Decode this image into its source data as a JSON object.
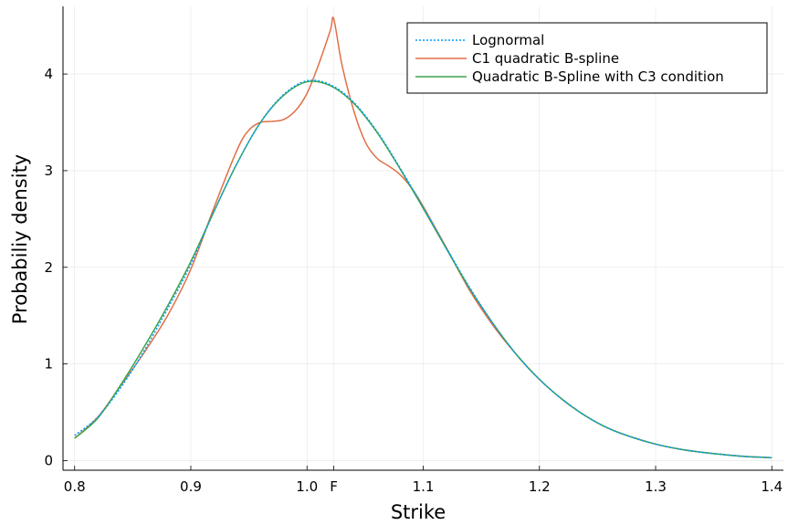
{
  "chart_data": {
    "type": "line",
    "title": "",
    "xlabel": "Strike",
    "ylabel": "Probabiliy density",
    "xlim": [
      0.79,
      1.41
    ],
    "ylim": [
      -0.1,
      4.7
    ],
    "grid": true,
    "legend_position": "top-right",
    "x_ticks": [
      {
        "value": 0.8,
        "label": "0.8"
      },
      {
        "value": 0.9,
        "label": "0.9"
      },
      {
        "value": 1.0,
        "label": "1.0"
      },
      {
        "value": 1.023,
        "label": "F"
      },
      {
        "value": 1.1,
        "label": "1.1"
      },
      {
        "value": 1.2,
        "label": "1.2"
      },
      {
        "value": 1.3,
        "label": "1.3"
      },
      {
        "value": 1.4,
        "label": "1.4"
      }
    ],
    "y_ticks": [
      {
        "value": 0,
        "label": "0"
      },
      {
        "value": 1,
        "label": "1"
      },
      {
        "value": 2,
        "label": "2"
      },
      {
        "value": 3,
        "label": "3"
      },
      {
        "value": 4,
        "label": "4"
      }
    ],
    "series": [
      {
        "name": "Lognormal",
        "color": "#009AFA",
        "dash": "dotted",
        "x": [
          0.8,
          0.82,
          0.84,
          0.86,
          0.88,
          0.9,
          0.92,
          0.94,
          0.96,
          0.98,
          1.0,
          1.02,
          1.04,
          1.06,
          1.08,
          1.1,
          1.12,
          1.14,
          1.16,
          1.18,
          1.2,
          1.22,
          1.24,
          1.26,
          1.28,
          1.3,
          1.32,
          1.34,
          1.36,
          1.38,
          1.4
        ],
        "y": [
          0.26,
          0.45,
          0.76,
          1.14,
          1.57,
          2.03,
          2.58,
          3.08,
          3.5,
          3.79,
          3.93,
          3.89,
          3.71,
          3.41,
          3.03,
          2.62,
          2.2,
          1.79,
          1.42,
          1.1,
          0.84,
          0.63,
          0.46,
          0.33,
          0.24,
          0.17,
          0.12,
          0.085,
          0.06,
          0.04,
          0.03
        ]
      },
      {
        "name": "C1 quadratic B-spline",
        "color": "#E26F46",
        "dash": "solid",
        "x": [
          0.8,
          0.82,
          0.84,
          0.86,
          0.88,
          0.9,
          0.92,
          0.94,
          0.95,
          0.96,
          0.97,
          0.98,
          0.99,
          1.0,
          1.01,
          1.02,
          1.023,
          1.03,
          1.04,
          1.05,
          1.06,
          1.07,
          1.08,
          1.09,
          1.1,
          1.12,
          1.14,
          1.16,
          1.18,
          1.2,
          1.22,
          1.24,
          1.26,
          1.28,
          1.3,
          1.32,
          1.34,
          1.36,
          1.38,
          1.4
        ],
        "y": [
          0.23,
          0.45,
          0.78,
          1.12,
          1.5,
          1.98,
          2.62,
          3.22,
          3.42,
          3.5,
          3.51,
          3.53,
          3.62,
          3.8,
          4.1,
          4.45,
          4.57,
          4.1,
          3.63,
          3.3,
          3.13,
          3.05,
          2.96,
          2.82,
          2.63,
          2.2,
          1.76,
          1.4,
          1.1,
          0.84,
          0.63,
          0.46,
          0.33,
          0.24,
          0.17,
          0.12,
          0.085,
          0.06,
          0.04,
          0.03
        ]
      },
      {
        "name": "Quadratic B-Spline with C3 condition",
        "color": "#3EA44E",
        "dash": "solid",
        "x": [
          0.8,
          0.82,
          0.84,
          0.86,
          0.88,
          0.9,
          0.92,
          0.94,
          0.96,
          0.98,
          1.0,
          1.02,
          1.04,
          1.06,
          1.08,
          1.1,
          1.12,
          1.14,
          1.16,
          1.18,
          1.2,
          1.22,
          1.24,
          1.26,
          1.28,
          1.3,
          1.32,
          1.34,
          1.36,
          1.38,
          1.4
        ],
        "y": [
          0.23,
          0.44,
          0.79,
          1.18,
          1.6,
          2.06,
          2.58,
          3.08,
          3.5,
          3.78,
          3.92,
          3.88,
          3.7,
          3.4,
          3.02,
          2.61,
          2.19,
          1.78,
          1.42,
          1.1,
          0.84,
          0.63,
          0.46,
          0.33,
          0.24,
          0.17,
          0.12,
          0.085,
          0.06,
          0.04,
          0.03
        ]
      }
    ]
  }
}
